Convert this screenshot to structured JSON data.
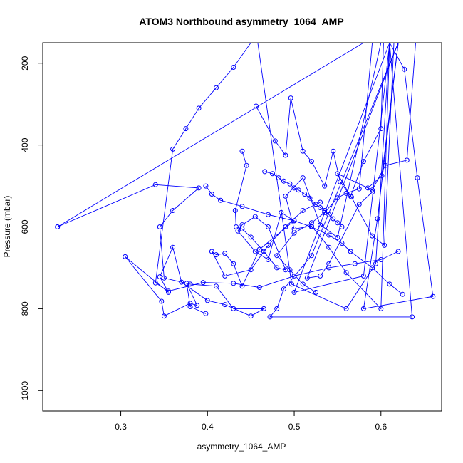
{
  "chart_data": {
    "type": "scatter",
    "title": "ATOM3 Northbound asymmetry_1064_AMP",
    "xlabel": "asymmetry_1064_AMP",
    "ylabel": "Pressure (mbar)",
    "xlim": [
      0.21,
      0.67
    ],
    "ylim": [
      1050,
      150
    ],
    "y_reversed": true,
    "xticks": [
      0.3,
      0.4,
      0.5,
      0.6
    ],
    "yticks": [
      200,
      400,
      600,
      800,
      1000
    ],
    "grid": false,
    "legend": "none",
    "series_color": "#0000ff",
    "marker": "open-circle",
    "connected": true,
    "series": [
      {
        "x": [
          0.61,
          0.627,
          0.642,
          0.66,
          0.58,
          0.596,
          0.62,
          0.458,
          0.497,
          0.56,
          0.594,
          0.61,
          0.58,
          0.5,
          0.61,
          0.636,
          0.472,
          0.48,
          0.488,
          0.52,
          0.62
        ],
        "y": [
          150,
          215,
          480,
          770,
          800,
          580,
          150,
          150,
          740,
          800,
          690,
          150,
          720,
          760,
          150,
          820,
          820,
          800,
          752,
          670,
          150
        ]
      },
      {
        "x": [
          0.603,
          0.6,
          0.58,
          0.565,
          0.55,
          0.59,
          0.605,
          0.63,
          0.64,
          0.62,
          0.601,
          0.585,
          0.59,
          0.575,
          0.54,
          0.53,
          0.515,
          0.62,
          0.61,
          0.6,
          0.56,
          0.54,
          0.52,
          0.5,
          0.49,
          0.51,
          0.53,
          0.55,
          0.6
        ],
        "y": [
          150,
          360,
          440,
          525,
          470,
          510,
          450,
          437,
          150,
          150,
          475,
          505,
          515,
          545,
          690,
          720,
          725,
          150,
          150,
          800,
          712,
          650,
          598,
          605,
          525,
          480,
          595,
          626,
          150
        ]
      },
      {
        "x": [
          0.456,
          0.478,
          0.49,
          0.496,
          0.51,
          0.52,
          0.535,
          0.545,
          0.553,
          0.566,
          0.59,
          0.604,
          0.615,
          0.59,
          0.575,
          0.56,
          0.55,
          0.535,
          0.52,
          0.5,
          0.48,
          0.495,
          0.51,
          0.525
        ],
        "y": [
          305,
          390,
          425,
          285,
          415,
          440,
          500,
          415,
          490,
          527,
          622,
          645,
          150,
          150,
          507,
          518,
          529,
          565,
          590,
          615,
          670,
          705,
          740,
          760
        ]
      },
      {
        "x": [
          0.44,
          0.445,
          0.432,
          0.433,
          0.44,
          0.45,
          0.465,
          0.48,
          0.49,
          0.47,
          0.455,
          0.44,
          0.435,
          0.455,
          0.47,
          0.485,
          0.5,
          0.46,
          0.44,
          0.43,
          0.42,
          0.41,
          0.405,
          0.42,
          0.45,
          0.47,
          0.49,
          0.51,
          0.53
        ],
        "y": [
          415,
          450,
          560,
          600,
          605,
          625,
          660,
          700,
          705,
          600,
          575,
          595,
          610,
          660,
          680,
          565,
          585,
          655,
          745,
          690,
          665,
          668,
          660,
          720,
          705,
          645,
          600,
          560,
          540
        ]
      },
      {
        "x": [
          0.227,
          0.34,
          0.39,
          0.36,
          0.345,
          0.35,
          0.38,
          0.41,
          0.43,
          0.465,
          0.45,
          0.42,
          0.4,
          0.37,
          0.36,
          0.345,
          0.355,
          0.305,
          0.347,
          0.35,
          0.38,
          0.388,
          0.376,
          0.38,
          0.398
        ],
        "y": [
          600,
          497,
          505,
          560,
          600,
          725,
          740,
          745,
          800,
          800,
          818,
          790,
          780,
          735,
          650,
          722,
          760,
          673,
          782,
          818,
          787,
          792,
          738,
          795,
          812
        ]
      },
      {
        "x": [
          0.227,
          0.58,
          0.6,
          0.505,
          0.53,
          0.49,
          0.47,
          0.45,
          0.43,
          0.41,
          0.39,
          0.375,
          0.36,
          0.34,
          0.355,
          0.395,
          0.43,
          0.46,
          0.5,
          0.54,
          0.57,
          0.6,
          0.62
        ],
        "y": [
          600,
          150,
          150,
          150,
          150,
          150,
          150,
          150,
          210,
          260,
          310,
          360,
          410,
          737,
          757,
          736,
          738,
          748,
          720,
          700,
          690,
          680,
          660
        ]
      },
      {
        "x": [
          0.398,
          0.405,
          0.415,
          0.44,
          0.47,
          0.5,
          0.52,
          0.54,
          0.555,
          0.565,
          0.59,
          0.61,
          0.625
        ],
        "y": [
          500,
          520,
          535,
          550,
          570,
          585,
          600,
          620,
          640,
          660,
          700,
          740,
          765
        ]
      },
      {
        "x": [
          0.466,
          0.475,
          0.482,
          0.488,
          0.495,
          0.5,
          0.505,
          0.512,
          0.518,
          0.525,
          0.53,
          0.535,
          0.54,
          0.545,
          0.55,
          0.555
        ],
        "y": [
          465,
          470,
          480,
          488,
          495,
          505,
          510,
          520,
          530,
          545,
          553,
          560,
          570,
          580,
          590,
          600
        ]
      }
    ]
  }
}
